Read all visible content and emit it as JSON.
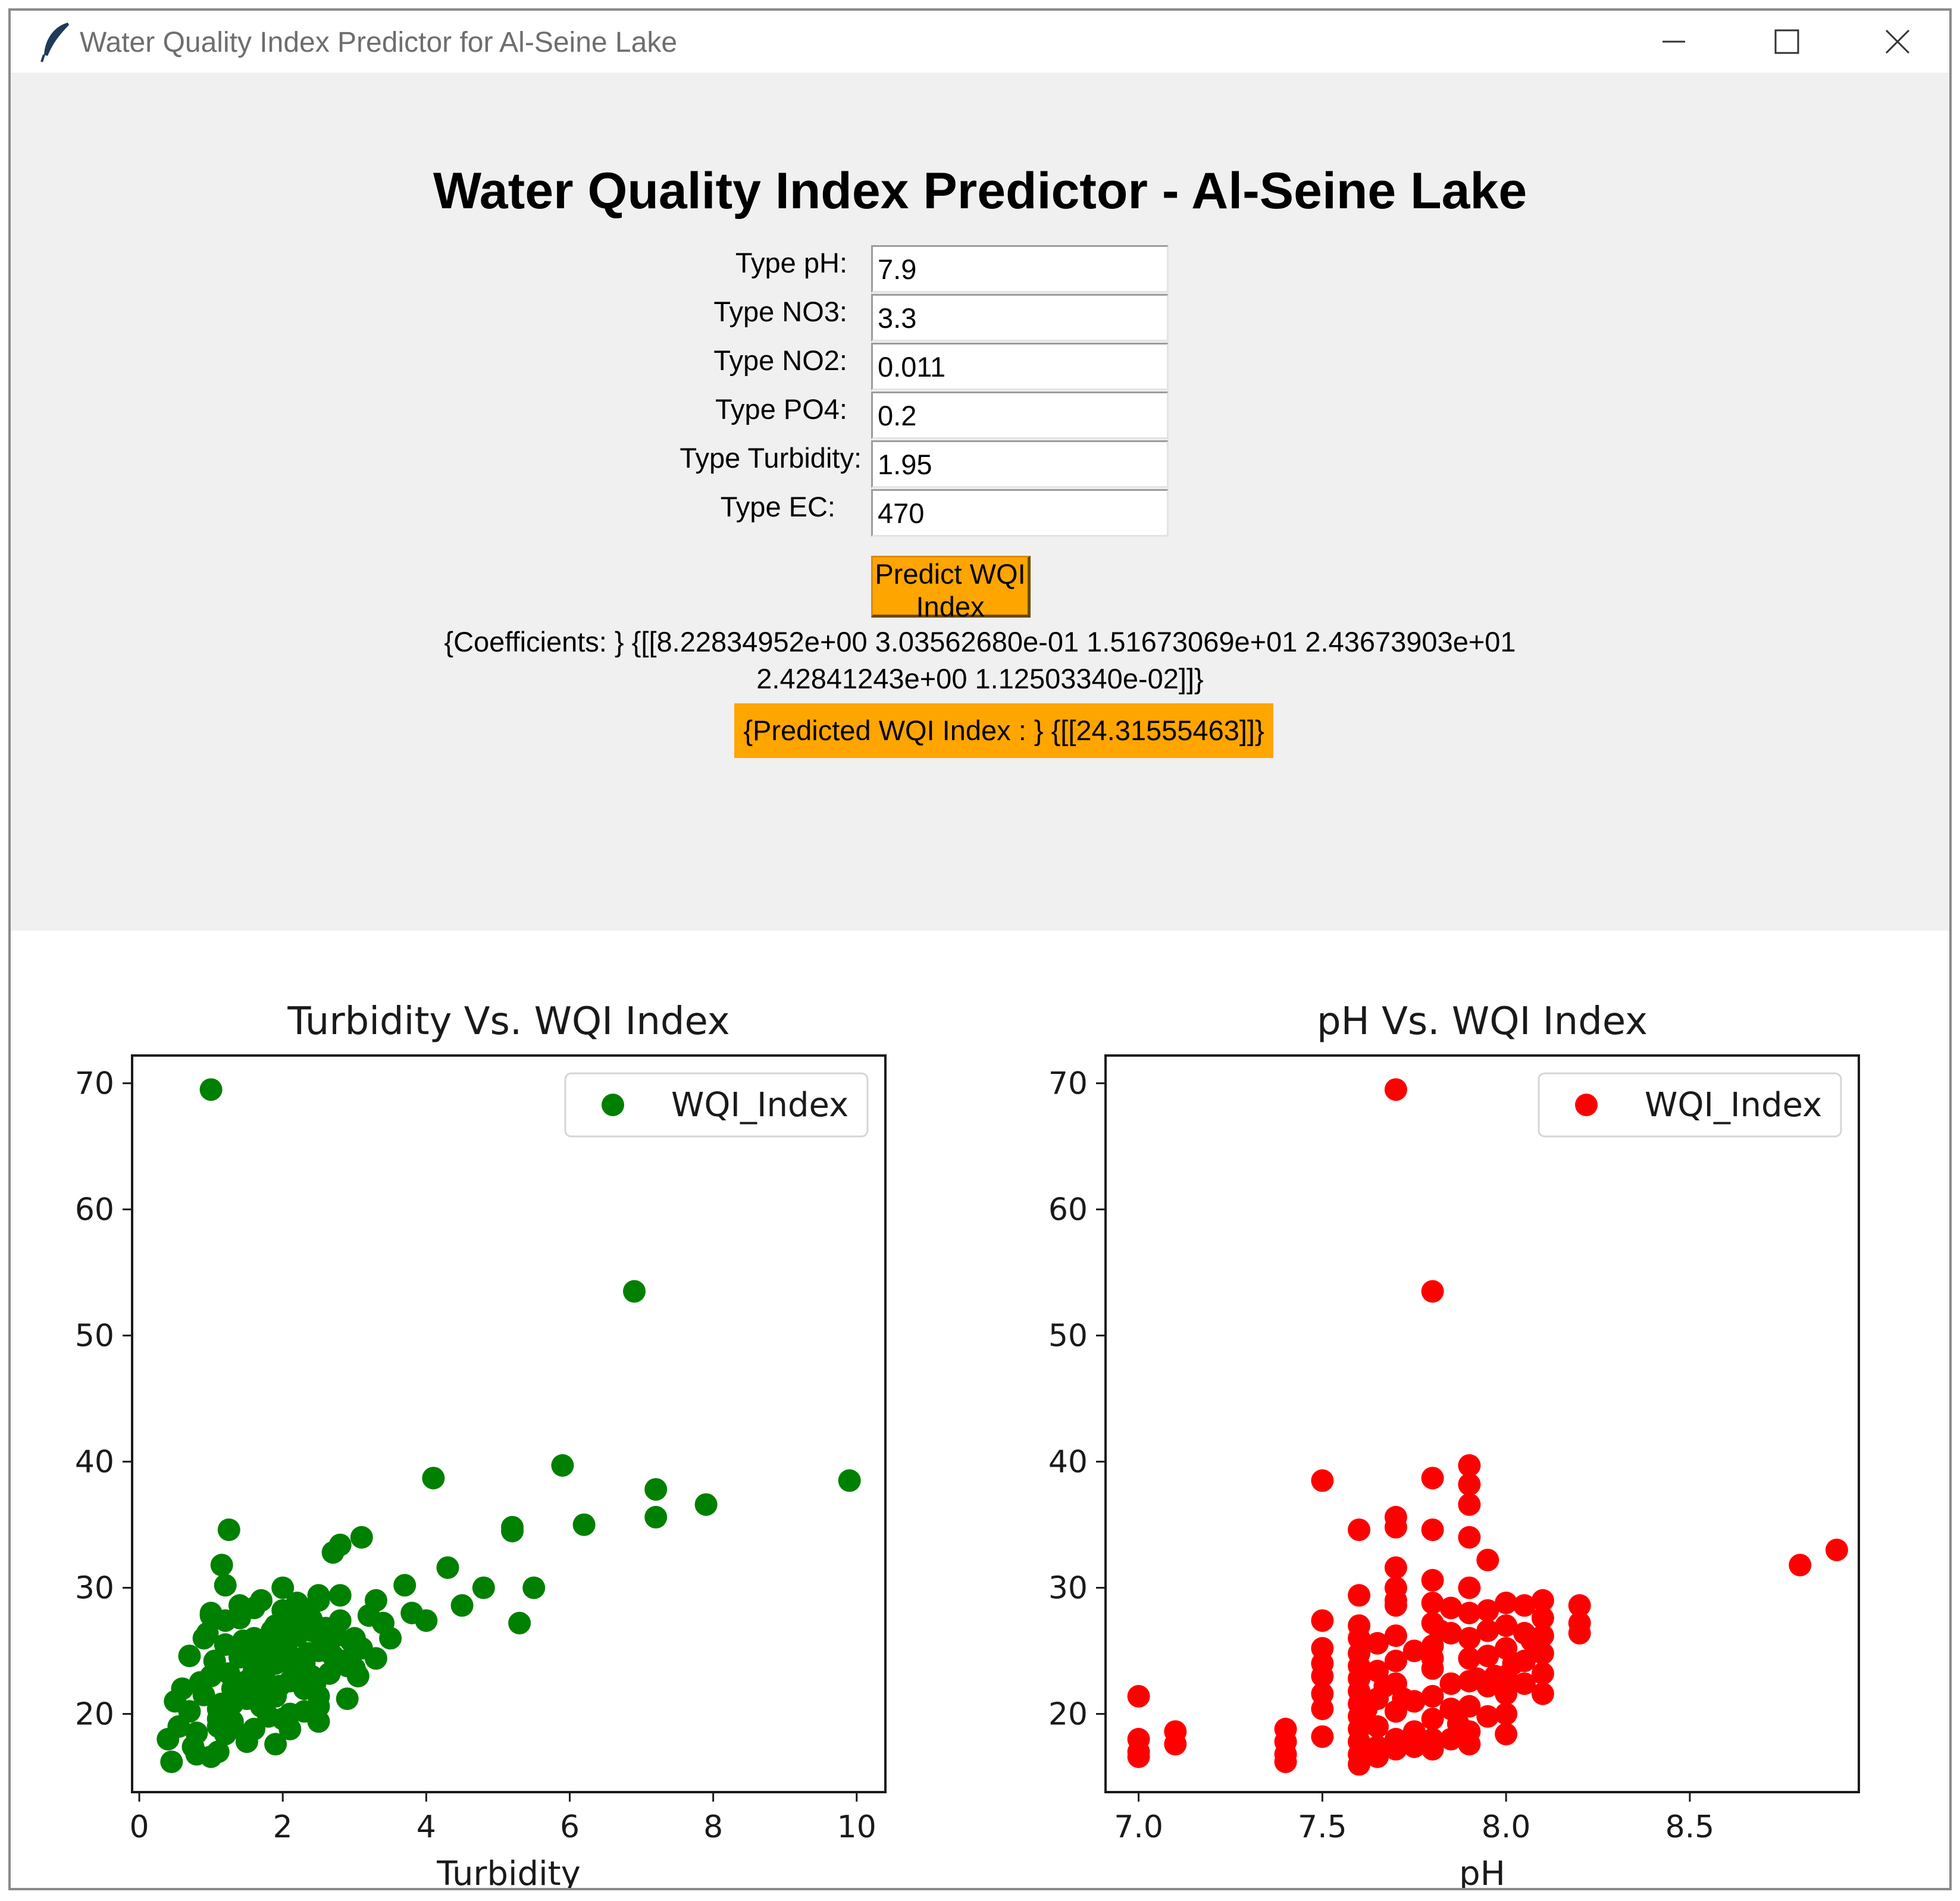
{
  "window": {
    "title": "Water Quality Index Predictor for Al-Seine Lake"
  },
  "header": {
    "title": "Water Quality Index Predictor - Al-Seine Lake"
  },
  "form": {
    "fields": [
      {
        "label": "Type pH:",
        "value": "7.9"
      },
      {
        "label": "Type NO3:",
        "value": "3.3"
      },
      {
        "label": "Type NO2:",
        "value": "0.011"
      },
      {
        "label": "Type PO4:",
        "value": "0.2"
      },
      {
        "label": "Type Turbidity:",
        "value": "1.95"
      },
      {
        "label": "Type EC:",
        "value": "470"
      }
    ],
    "predict_button": "Predict WQI Index",
    "coefficients_line1": "{Coefficients: } {[[8.22834952e+00 3.03562680e-01 1.51673069e+01 2.43673903e+01",
    "coefficients_line2": "2.42841243e+00 1.12503340e-02]]}",
    "result": "{Predicted WQI Index : } {[[24.31555463]]}",
    "accent_color": "#ffa500"
  },
  "chart_data": [
    {
      "type": "scatter",
      "title": "Turbidity Vs. WQI Index",
      "xlabel": "Turbidity",
      "ylabel": "",
      "xlim": [
        -0.1,
        10.4
      ],
      "ylim": [
        13.8,
        72.2
      ],
      "xticks": [
        "0",
        "2",
        "4",
        "6",
        "8",
        "10"
      ],
      "xtick_values": [
        0,
        2,
        4,
        6,
        8,
        10
      ],
      "yticks": [
        "20",
        "30",
        "40",
        "50",
        "60",
        "70"
      ],
      "ytick_values": [
        20,
        30,
        40,
        50,
        60,
        70
      ],
      "legend": "top-right",
      "grid": false,
      "color": "#008000",
      "series": [
        {
          "name": "WQI_Index",
          "x": [
            1.0,
            6.9,
            4.1,
            5.9,
            9.9,
            7.2,
            7.2,
            7.9,
            5.2,
            5.2,
            6.2,
            1.25,
            1.15,
            2.7,
            2.8,
            3.1,
            3.7,
            4.3,
            4.8,
            4.5,
            5.5,
            5.3,
            4.0,
            3.8,
            3.3,
            2.8,
            2.3,
            0.4,
            0.45,
            0.5,
            0.55,
            0.6,
            0.7,
            0.8,
            0.9,
            1.0,
            1.1,
            1.2,
            1.3,
            1.4,
            1.5,
            1.6,
            1.7,
            1.8,
            1.9,
            2.0,
            2.1,
            2.2,
            2.3,
            2.4,
            2.5,
            2.6,
            2.7,
            2.8,
            2.9,
            3.0,
            3.1,
            3.2,
            3.3,
            3.4,
            3.5,
            0.75,
            0.85,
            0.95,
            1.05,
            1.15,
            1.25,
            1.35,
            1.45,
            1.55,
            1.65,
            1.75,
            1.85,
            1.95,
            2.05,
            2.15,
            2.25,
            2.35,
            2.45,
            2.55,
            2.65,
            2.75,
            2.85,
            2.95,
            3.05,
            1.0,
            1.1,
            1.2,
            1.3,
            1.4,
            1.5,
            1.6,
            1.7,
            1.8,
            1.9,
            2.0,
            2.1,
            2.2,
            2.3,
            2.4,
            2.5,
            2.6,
            1.1,
            1.3,
            1.5,
            1.7,
            1.9,
            2.1,
            2.3,
            2.5,
            1.2,
            1.4,
            1.6,
            1.8,
            2.0,
            2.2,
            1.0,
            1.3,
            1.6,
            1.9,
            2.2,
            2.5,
            0.7,
            0.9,
            1.1,
            1.5,
            1.8,
            2.1,
            2.5,
            2.9,
            1.0,
            1.5,
            2.0,
            2.5,
            3.0,
            0.8,
            1.2,
            1.6,
            2.0,
            2.4,
            2.8
          ],
          "y": [
            69.5,
            53.5,
            38.7,
            39.7,
            38.5,
            37.8,
            35.6,
            36.6,
            34.8,
            34.5,
            35.0,
            34.6,
            31.8,
            32.8,
            33.4,
            34.0,
            30.2,
            31.6,
            30.0,
            28.6,
            30.0,
            27.2,
            27.4,
            28.0,
            29.0,
            29.4,
            28.3,
            18.0,
            16.2,
            21.0,
            19.0,
            22.0,
            20.2,
            18.5,
            21.5,
            23.0,
            19.6,
            25.5,
            22.0,
            24.5,
            21.2,
            26.0,
            23.8,
            25.2,
            24.0,
            27.0,
            22.6,
            26.2,
            24.0,
            27.5,
            25.0,
            26.8,
            24.6,
            27.4,
            23.8,
            26.0,
            25.2,
            27.8,
            24.4,
            27.2,
            26.0,
            17.4,
            22.5,
            26.4,
            24.2,
            20.8,
            23.2,
            21.6,
            25.8,
            22.8,
            24.8,
            23.4,
            26.6,
            22.2,
            25.4,
            23.6,
            27.6,
            24.8,
            22.4,
            25.6,
            23.2,
            26.2,
            24.2,
            25.8,
            23.0,
            28.0,
            20.4,
            27.4,
            19.2,
            28.6,
            22.6,
            18.8,
            29.0,
            21.8,
            27.0,
            30.0,
            20.0,
            28.8,
            22.0,
            26.6,
            29.4,
            25.8,
            17.0,
            19.4,
            18.2,
            20.6,
            17.6,
            18.8,
            20.2,
            19.4,
            30.2,
            27.6,
            28.4,
            19.8,
            26.8,
            27.2,
            16.6,
            20.8,
            23.6,
            21.4,
            22.8,
            20.6,
            24.6,
            26.0,
            19.0,
            17.8,
            22.0,
            24.6,
            21.4,
            21.2,
            27.8,
            22.4,
            28.2,
            29.0,
            23.6,
            16.8,
            18.4,
            21.6,
            19.6,
            23.0,
            24.0
          ]
        }
      ]
    },
    {
      "type": "scatter",
      "title": "pH Vs. WQI Index",
      "xlabel": "pH",
      "ylabel": "",
      "xlim": [
        6.91,
        8.96
      ],
      "ylim": [
        13.8,
        72.2
      ],
      "xticks": [
        "7.0",
        "7.5",
        "8.0",
        "8.5"
      ],
      "xtick_values": [
        7.0,
        7.5,
        8.0,
        8.5
      ],
      "yticks": [
        "20",
        "30",
        "40",
        "50",
        "60",
        "70"
      ],
      "ytick_values": [
        20,
        30,
        40,
        50,
        60,
        70
      ],
      "legend": "top-right",
      "grid": false,
      "color": "#ff0000",
      "series": [
        {
          "name": "WQI_Index",
          "x": [
            7.7,
            7.8,
            7.5,
            7.8,
            7.9,
            7.9,
            7.9,
            7.7,
            7.7,
            7.8,
            7.6,
            7.9,
            8.8,
            8.9,
            7.0,
            7.0,
            7.0,
            7.0,
            7.1,
            7.1,
            7.4,
            7.4,
            7.4,
            7.4,
            7.5,
            7.5,
            7.5,
            7.5,
            7.5,
            7.5,
            7.5,
            7.6,
            7.6,
            7.6,
            7.6,
            7.6,
            7.6,
            7.6,
            7.6,
            7.6,
            7.6,
            7.6,
            7.6,
            7.6,
            7.65,
            7.65,
            7.65,
            7.65,
            7.65,
            7.65,
            7.7,
            7.7,
            7.7,
            7.7,
            7.7,
            7.7,
            7.7,
            7.7,
            7.7,
            7.7,
            7.75,
            7.75,
            7.75,
            7.75,
            7.8,
            7.8,
            7.8,
            7.8,
            7.8,
            7.8,
            7.8,
            7.8,
            7.8,
            7.8,
            7.85,
            7.85,
            7.85,
            7.85,
            7.85,
            7.9,
            7.9,
            7.9,
            7.9,
            7.9,
            7.9,
            7.9,
            7.9,
            7.95,
            7.95,
            7.95,
            7.95,
            7.95,
            7.95,
            8.0,
            8.0,
            8.0,
            8.0,
            8.0,
            8.0,
            8.0,
            8.05,
            8.05,
            8.05,
            8.05,
            8.1,
            8.1,
            8.1,
            8.1,
            8.1,
            8.1,
            8.2,
            8.2,
            8.2,
            7.97,
            7.72,
            7.62,
            7.82,
            7.92,
            8.02,
            8.07,
            7.87,
            7.67
          ],
          "y": [
            69.5,
            53.5,
            38.5,
            38.7,
            39.7,
            38.2,
            36.6,
            35.6,
            34.8,
            34.6,
            34.6,
            34.0,
            31.8,
            33.0,
            21.4,
            18.0,
            17.0,
            16.6,
            18.6,
            17.6,
            18.8,
            17.8,
            16.8,
            16.2,
            27.4,
            25.2,
            24.0,
            23.0,
            21.6,
            20.4,
            18.2,
            29.4,
            27.0,
            26.0,
            24.8,
            23.8,
            22.8,
            21.8,
            20.8,
            19.8,
            18.8,
            17.8,
            16.8,
            16.0,
            25.6,
            23.4,
            21.2,
            19.0,
            17.4,
            16.6,
            31.6,
            30.0,
            28.6,
            26.2,
            24.2,
            22.4,
            20.2,
            18.0,
            17.2,
            29.0,
            25.0,
            21.0,
            18.6,
            17.4,
            30.6,
            28.8,
            27.2,
            25.4,
            23.6,
            21.4,
            19.6,
            18.0,
            17.2,
            24.4,
            28.4,
            26.4,
            22.4,
            20.4,
            18.0,
            30.0,
            28.0,
            26.0,
            24.4,
            22.6,
            20.6,
            18.6,
            17.6,
            32.2,
            28.2,
            26.6,
            24.6,
            22.2,
            19.8,
            28.8,
            27.0,
            25.2,
            23.0,
            21.6,
            20.0,
            18.4,
            28.6,
            26.4,
            24.2,
            22.4,
            29.0,
            27.6,
            26.2,
            24.8,
            23.2,
            21.6,
            28.6,
            27.2,
            26.4,
            23.0,
            21.2,
            20.4,
            26.6,
            22.8,
            24.0,
            25.8,
            19.2,
            22.2
          ]
        }
      ]
    }
  ]
}
